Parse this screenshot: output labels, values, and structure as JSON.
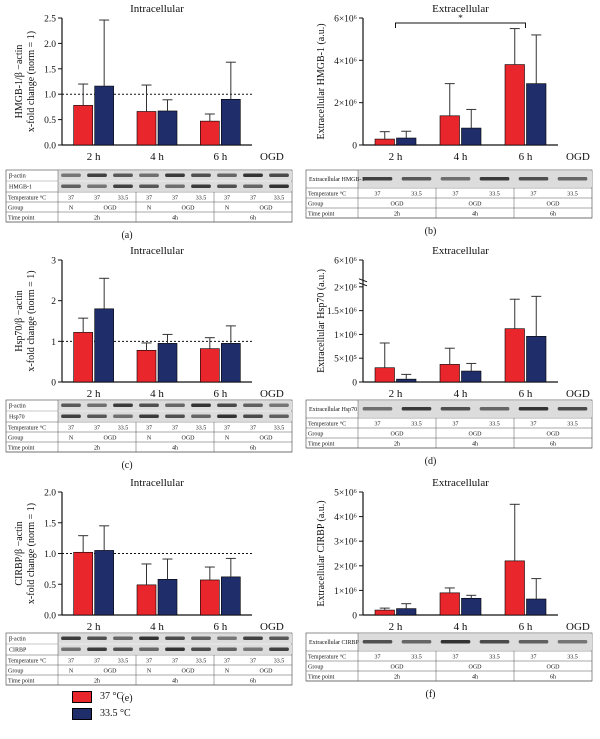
{
  "colors": {
    "c37": "#e8262b",
    "c335": "#1f2d6b",
    "axis": "#111111",
    "band": "#222222",
    "blotbg": "#dcdcdc"
  },
  "legend": [
    {
      "label": "37 °C",
      "color": "#e8262b"
    },
    {
      "label": "33.5 °C",
      "color": "#1f2d6b"
    }
  ],
  "chart_data": [
    {
      "id": "a",
      "type": "bar",
      "title": "Intracellular",
      "ylabel_lines": [
        "HMGB-1/β −actin",
        "x-fold change (norm = 1)"
      ],
      "categories": [
        "2 h",
        "4 h",
        "6 h"
      ],
      "xlabel_right": "OGD",
      "ylim": [
        0,
        2.5
      ],
      "yticks": [
        0,
        0.5,
        1.0,
        1.5,
        2.0,
        2.5
      ],
      "ytick_labels": [
        "0.0",
        "0.5",
        "1.0",
        "1.5",
        "2.0",
        "2.5"
      ],
      "refline": 1.0,
      "series": [
        {
          "name": "37 °C",
          "values": [
            0.78,
            0.66,
            0.47
          ],
          "err": [
            0.42,
            0.52,
            0.14
          ]
        },
        {
          "name": "33.5 °C",
          "values": [
            1.16,
            0.67,
            0.9
          ],
          "err": [
            1.3,
            0.22,
            0.73
          ]
        }
      ],
      "blot": {
        "rows": [
          "β-actin",
          "HMGB-1"
        ],
        "temp_label": "Temperature °C",
        "temps": [
          "37",
          "37",
          "33.5",
          "37",
          "37",
          "33.5",
          "37",
          "37",
          "33.5"
        ],
        "group_label": "Group",
        "groups": [
          "N",
          "OGD",
          "N",
          "OGD",
          "N",
          "OGD"
        ],
        "time_label": "Time point",
        "times": [
          "2h",
          "4h",
          "6h"
        ]
      },
      "panel_label": "(a)"
    },
    {
      "id": "b",
      "type": "bar",
      "title": "Extracellular",
      "ylabel_lines": [
        "Extracellular HMGB-1 (a.u.)"
      ],
      "categories": [
        "2 h",
        "4 h",
        "6 h"
      ],
      "xlabel_right": "OGD",
      "ylim": [
        0,
        6000000
      ],
      "yticks": [
        0,
        2000000,
        4000000,
        6000000
      ],
      "ytick_labels": [
        "0",
        "2×10⁶",
        "4×10⁶",
        "6×10⁶"
      ],
      "significance": {
        "from": "2 h",
        "to": "6 h",
        "label": "*"
      },
      "series": [
        {
          "name": "37 °C",
          "values": [
            280000,
            1380000,
            3800000
          ],
          "err": [
            350000,
            1520000,
            1700000
          ]
        },
        {
          "name": "33.5 °C",
          "values": [
            330000,
            800000,
            2900000
          ],
          "err": [
            320000,
            880000,
            2300000
          ]
        }
      ],
      "blot": {
        "rows": [
          "Extracellular HMGB-1"
        ],
        "temp_label": "Temperature °C",
        "temps": [
          "37",
          "33.5",
          "37",
          "33.5",
          "37",
          "33.5"
        ],
        "group_label": "Group",
        "groups": [
          "OGD",
          "OGD",
          "OGD"
        ],
        "time_label": "Time point",
        "times": [
          "2h",
          "4h",
          "6h"
        ]
      },
      "panel_label": "(b)"
    },
    {
      "id": "c",
      "type": "bar",
      "title": "Intracellular",
      "ylabel_lines": [
        "Hsp70/β −actin",
        "x-fold change (norm = 1)"
      ],
      "categories": [
        "2 h",
        "4 h",
        "6 h"
      ],
      "xlabel_right": "OGD",
      "ylim": [
        0,
        3
      ],
      "yticks": [
        0,
        1,
        2,
        3
      ],
      "ytick_labels": [
        "0",
        "1",
        "2",
        "3"
      ],
      "refline": 1.0,
      "series": [
        {
          "name": "37 °C",
          "values": [
            1.22,
            0.78,
            0.82
          ],
          "err": [
            0.35,
            0.18,
            0.27
          ]
        },
        {
          "name": "33.5 °C",
          "values": [
            1.8,
            0.95,
            0.95
          ],
          "err": [
            0.75,
            0.22,
            0.43
          ]
        }
      ],
      "blot": {
        "rows": [
          "β-actin",
          "Hsp70"
        ],
        "temp_label": "Temperature °C",
        "temps": [
          "37",
          "37",
          "33.5",
          "37",
          "37",
          "33.5",
          "37",
          "37",
          "33.5"
        ],
        "group_label": "Group",
        "groups": [
          "N",
          "OGD",
          "N",
          "OGD",
          "N",
          "OGD"
        ],
        "time_label": "Time point",
        "times": [
          "2h",
          "4h",
          "6h"
        ]
      },
      "panel_label": "(c)"
    },
    {
      "id": "d",
      "type": "bar",
      "title": "Extracellular",
      "ylabel_lines": [
        "Extracellular Hsp70 (a.u.)"
      ],
      "categories": [
        "2 h",
        "4 h",
        "6 h"
      ],
      "xlabel_right": "OGD",
      "ylim": [
        0,
        6000000
      ],
      "yticks": [
        0,
        500000,
        1000000,
        1500000,
        2000000,
        6000000
      ],
      "ytick_labels": [
        "0",
        "5×10⁵",
        "1×10⁶",
        "1.5×10⁶",
        "2×10⁶",
        "6×10⁶"
      ],
      "broken_axis": true,
      "series": [
        {
          "name": "37 °C",
          "values": [
            300000,
            370000,
            1120000
          ],
          "err": [
            520000,
            340000,
            620000
          ]
        },
        {
          "name": "33.5 °C",
          "values": [
            60000,
            230000,
            960000
          ],
          "err": [
            100000,
            160000,
            840000
          ]
        }
      ],
      "blot": {
        "rows": [
          "Extracellular Hsp70"
        ],
        "temp_label": "Temperature °C",
        "temps": [
          "37",
          "33.5",
          "37",
          "33.5",
          "37",
          "33.5"
        ],
        "group_label": "Group",
        "groups": [
          "OGD",
          "OGD",
          "OGD"
        ],
        "time_label": "Time point",
        "times": [
          "2h",
          "4h",
          "6h"
        ]
      },
      "panel_label": "(d)"
    },
    {
      "id": "e",
      "type": "bar",
      "title": "Intracellular",
      "ylabel_lines": [
        "CIRBP/β −actin",
        "x-fold change (norm = 1)"
      ],
      "categories": [
        "2 h",
        "4 h",
        "6 h"
      ],
      "xlabel_right": "OGD",
      "ylim": [
        0,
        2.0
      ],
      "yticks": [
        0,
        0.5,
        1.0,
        1.5,
        2.0
      ],
      "ytick_labels": [
        "0.0",
        "0.5",
        "1.0",
        "1.5",
        "2.0"
      ],
      "refline": 1.0,
      "series": [
        {
          "name": "37 °C",
          "values": [
            1.02,
            0.49,
            0.57
          ],
          "err": [
            0.27,
            0.34,
            0.21
          ]
        },
        {
          "name": "33.5 °C",
          "values": [
            1.05,
            0.58,
            0.62
          ],
          "err": [
            0.4,
            0.33,
            0.3
          ]
        }
      ],
      "blot": {
        "rows": [
          "β-actin",
          "CIRBP"
        ],
        "temp_label": "Temperature °C",
        "temps": [
          "37",
          "37",
          "33.5",
          "37",
          "37",
          "33.5",
          "37",
          "37",
          "33.5"
        ],
        "group_label": "Group",
        "groups": [
          "N",
          "OGD",
          "N",
          "OGD",
          "N",
          "OGD"
        ],
        "time_label": "Time point",
        "times": [
          "2h",
          "4h",
          "6h"
        ]
      },
      "panel_label": "(e)"
    },
    {
      "id": "f",
      "type": "bar",
      "title": "Extracellular",
      "ylabel_lines": [
        "Extracellular CIRBP (a.u.)"
      ],
      "categories": [
        "2 h",
        "4 h",
        "6 h"
      ],
      "xlabel_right": "OGD",
      "ylim": [
        0,
        5000000
      ],
      "yticks": [
        0,
        1000000,
        2000000,
        3000000,
        4000000,
        5000000
      ],
      "ytick_labels": [
        "0",
        "1×10⁶",
        "2×10⁶",
        "3×10⁶",
        "4×10⁶",
        "5×10⁶"
      ],
      "series": [
        {
          "name": "37 °C",
          "values": [
            200000,
            900000,
            2200000
          ],
          "err": [
            80000,
            200000,
            2300000
          ]
        },
        {
          "name": "33.5 °C",
          "values": [
            260000,
            680000,
            650000
          ],
          "err": [
            200000,
            120000,
            830000
          ]
        }
      ],
      "blot": {
        "rows": [
          "Extracellular CIRBP"
        ],
        "temp_label": "Temperature °C",
        "temps": [
          "37",
          "33.5",
          "37",
          "33.5",
          "37",
          "33.5"
        ],
        "group_label": "Group",
        "groups": [
          "OGD",
          "OGD",
          "OGD"
        ],
        "time_label": "Time point",
        "times": [
          "2h",
          "4h",
          "6h"
        ]
      },
      "panel_label": "(f)"
    }
  ]
}
